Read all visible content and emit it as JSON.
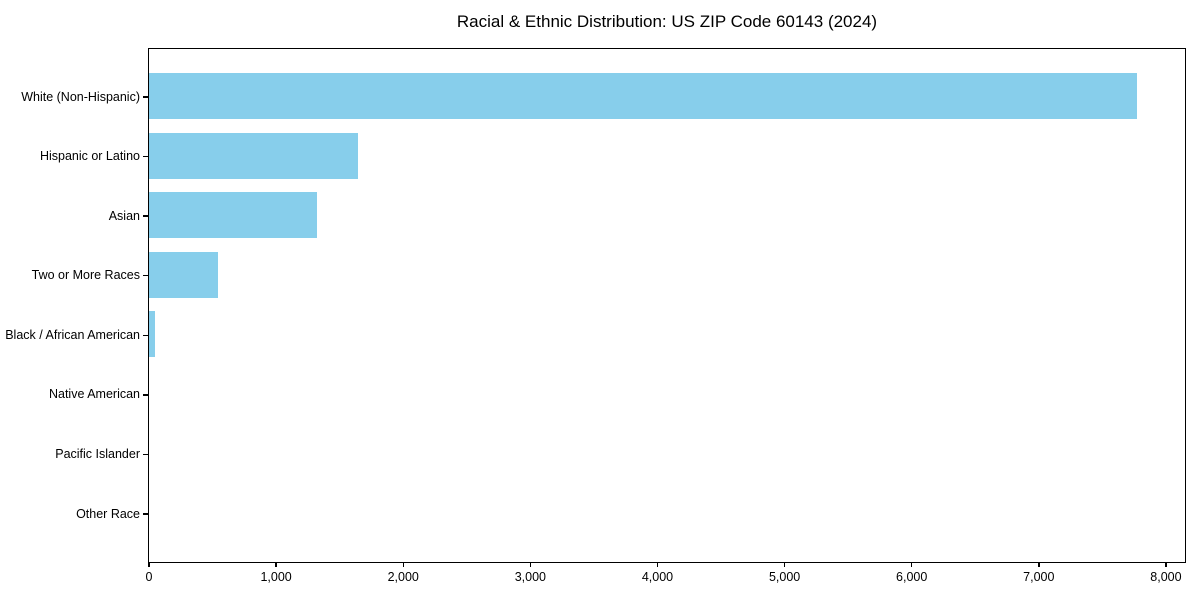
{
  "figure": {
    "background": "#ffffff",
    "text_color": "#000000",
    "frame_color": "#000000"
  },
  "chart_data": {
    "type": "bar",
    "orientation": "horizontal",
    "title": "Racial & Ethnic Distribution: US ZIP Code 60143 (2024)",
    "categories": [
      "White (Non-Hispanic)",
      "Hispanic or Latino",
      "Asian",
      "Two or More Races",
      "Black / African American",
      "Native American",
      "Pacific Islander",
      "Other Race"
    ],
    "values": [
      7770,
      1645,
      1320,
      545,
      45,
      0,
      0,
      0
    ],
    "bar_color": "#87CEEB",
    "xlabel": "",
    "ylabel": "",
    "xlim": [
      0,
      8150
    ],
    "xticks": [
      0,
      1000,
      2000,
      3000,
      4000,
      5000,
      6000,
      7000,
      8000
    ],
    "xtick_labels": [
      "0",
      "1,000",
      "2,000",
      "3,000",
      "4,000",
      "5,000",
      "6,000",
      "7,000",
      "8,000"
    ],
    "grid": false,
    "legend": false
  }
}
